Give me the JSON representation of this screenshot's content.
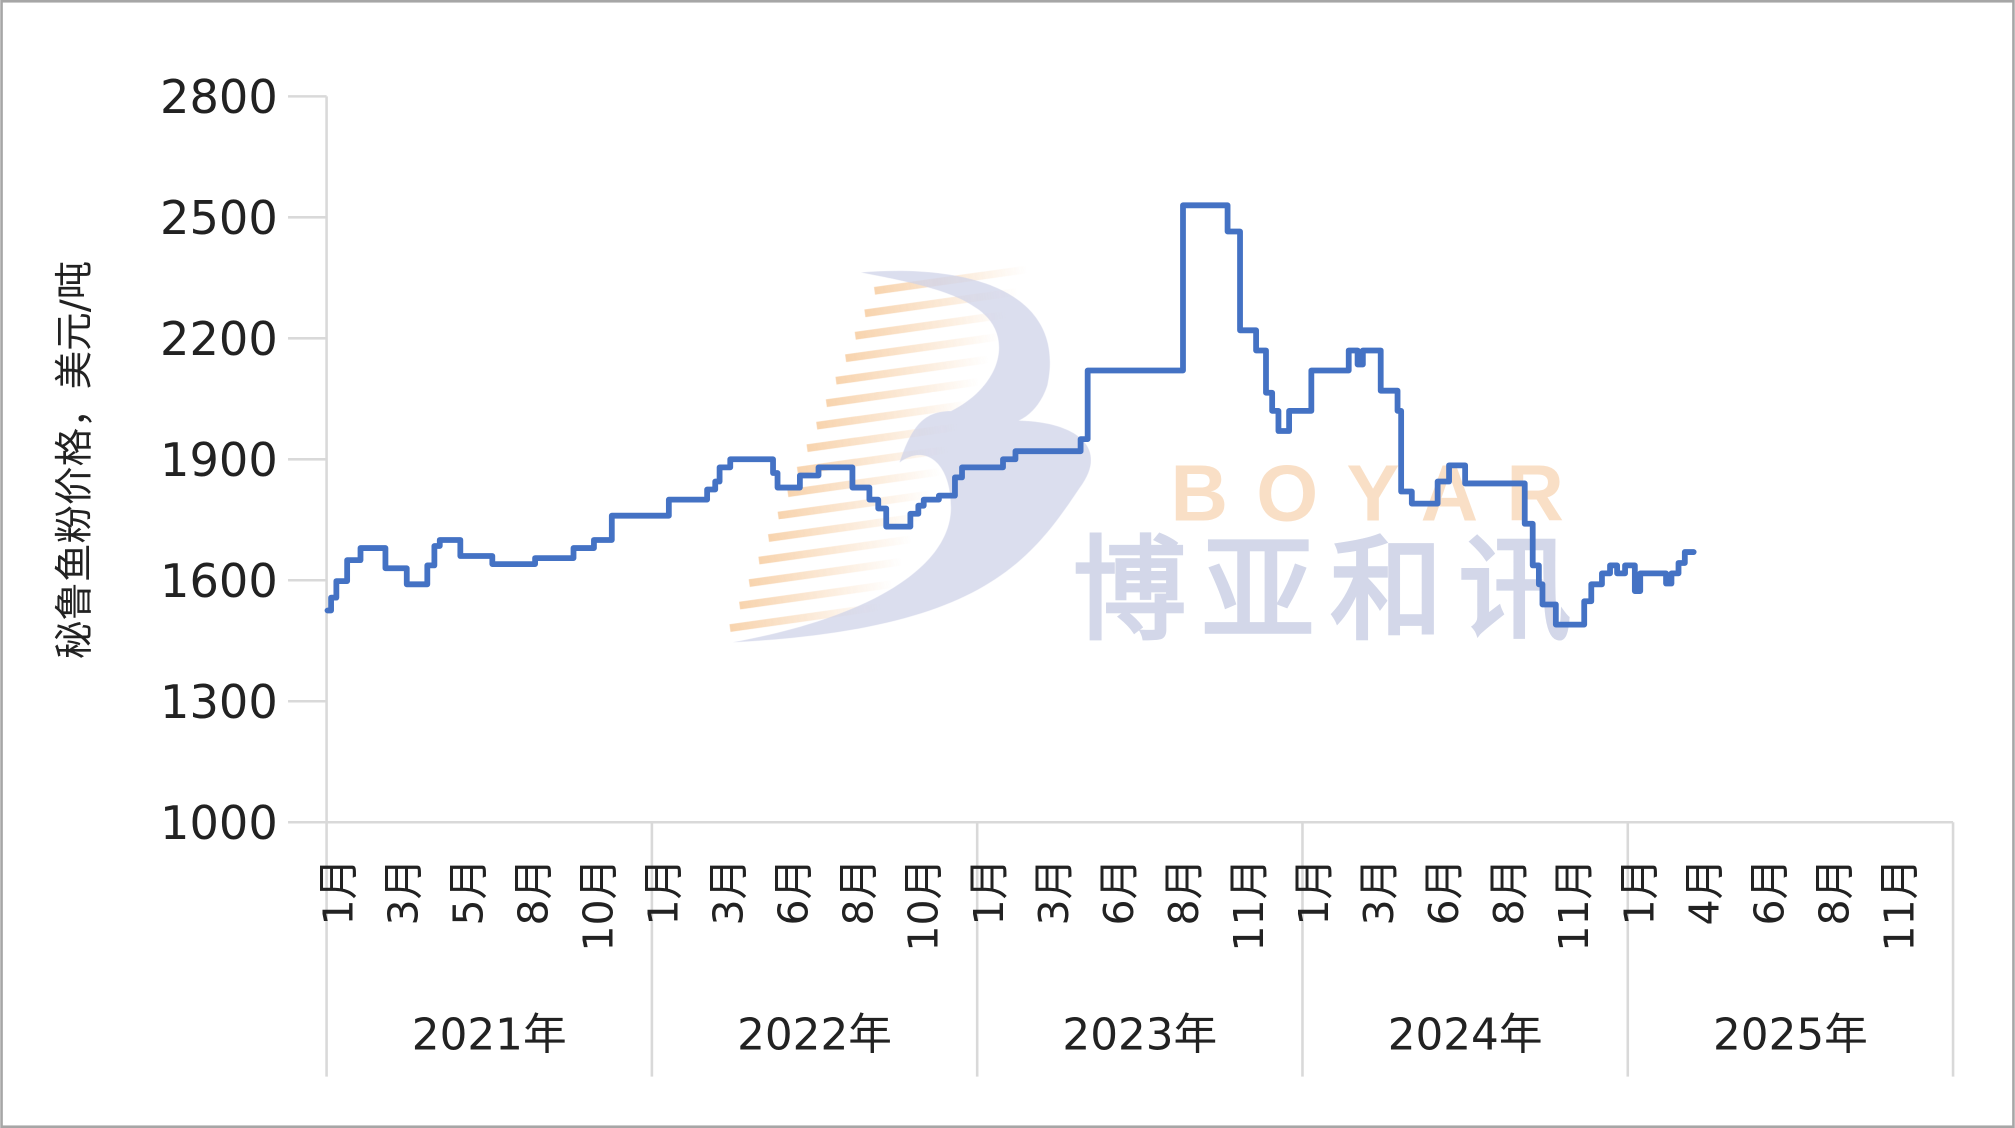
{
  "chart_data": {
    "type": "line",
    "title": "",
    "ylabel": "秘鲁鱼粉价格，美元/吨",
    "xlabel": "",
    "ylim": [
      1000,
      2800
    ],
    "yticks": [
      "1000",
      "1300",
      "1600",
      "1900",
      "2200",
      "2500",
      "2800"
    ],
    "grid": false,
    "line_color": "#4472C4",
    "years": [
      {
        "label": "2021年",
        "months": [
          "1月",
          "3月",
          "5月",
          "8月",
          "10月"
        ]
      },
      {
        "label": "2022年",
        "months": [
          "1月",
          "3月",
          "6月",
          "8月",
          "10月"
        ]
      },
      {
        "label": "2023年",
        "months": [
          "1月",
          "3月",
          "6月",
          "8月",
          "11月"
        ]
      },
      {
        "label": "2024年",
        "months": [
          "1月",
          "3月",
          "6月",
          "8月",
          "11月"
        ]
      },
      {
        "label": "2025年",
        "months": [
          "1月",
          "4月",
          "6月",
          "8月",
          "11月"
        ]
      }
    ],
    "series": [
      {
        "points": [
          [
            "2021-01-02",
            1525
          ],
          [
            "2021-01-06",
            1557
          ],
          [
            "2021-01-12",
            1598
          ],
          [
            "2021-01-24",
            1650
          ],
          [
            "2021-02-08",
            1680
          ],
          [
            "2021-03-08",
            1630
          ],
          [
            "2021-04-01",
            1590
          ],
          [
            "2021-04-24",
            1637
          ],
          [
            "2021-05-02",
            1685
          ],
          [
            "2021-05-08",
            1700
          ],
          [
            "2021-05-31",
            1660
          ],
          [
            "2021-07-06",
            1640
          ],
          [
            "2021-08-23",
            1655
          ],
          [
            "2021-10-05",
            1680
          ],
          [
            "2021-10-28",
            1700
          ],
          [
            "2021-11-17",
            1760
          ],
          [
            "2022-01-20",
            1800
          ],
          [
            "2022-03-04",
            1825
          ],
          [
            "2022-03-13",
            1845
          ],
          [
            "2022-03-18",
            1880
          ],
          [
            "2022-03-30",
            1900
          ],
          [
            "2022-05-17",
            1866
          ],
          [
            "2022-05-22",
            1830
          ],
          [
            "2022-06-16",
            1860
          ],
          [
            "2022-07-07",
            1880
          ],
          [
            "2022-08-14",
            1830
          ],
          [
            "2022-09-02",
            1800
          ],
          [
            "2022-09-12",
            1778
          ],
          [
            "2022-09-21",
            1733
          ],
          [
            "2022-10-18",
            1765
          ],
          [
            "2022-10-27",
            1785
          ],
          [
            "2022-11-02",
            1800
          ],
          [
            "2022-11-19",
            1810
          ],
          [
            "2022-12-07",
            1855
          ],
          [
            "2022-12-15",
            1880
          ],
          [
            "2023-01-30",
            1900
          ],
          [
            "2023-02-13",
            1920
          ],
          [
            "2023-04-27",
            1950
          ],
          [
            "2023-05-05",
            2120
          ],
          [
            "2023-08-20",
            2530
          ],
          [
            "2023-10-09",
            2465
          ],
          [
            "2023-10-23",
            2220
          ],
          [
            "2023-11-10",
            2170
          ],
          [
            "2023-11-21",
            2065
          ],
          [
            "2023-11-28",
            2020
          ],
          [
            "2023-12-05",
            1970
          ],
          [
            "2023-12-17",
            2020
          ],
          [
            "2024-01-11",
            2120
          ],
          [
            "2024-02-22",
            2170
          ],
          [
            "2024-03-03",
            2135
          ],
          [
            "2024-03-09",
            2170
          ],
          [
            "2024-03-29",
            2070
          ],
          [
            "2024-04-17",
            2020
          ],
          [
            "2024-04-21",
            1820
          ],
          [
            "2024-05-03",
            1790
          ],
          [
            "2024-06-01",
            1845
          ],
          [
            "2024-06-14",
            1885
          ],
          [
            "2024-07-02",
            1840
          ],
          [
            "2024-09-07",
            1740
          ],
          [
            "2024-09-16",
            1637
          ],
          [
            "2024-09-23",
            1590
          ],
          [
            "2024-09-27",
            1540
          ],
          [
            "2024-10-12",
            1490
          ],
          [
            "2024-11-13",
            1548
          ],
          [
            "2024-11-21",
            1590
          ],
          [
            "2024-12-03",
            1617
          ],
          [
            "2024-12-12",
            1637
          ],
          [
            "2024-12-20",
            1617
          ],
          [
            "2024-12-29",
            1637
          ],
          [
            "2025-01-09",
            1573
          ],
          [
            "2025-01-15",
            1617
          ],
          [
            "2025-02-13",
            1592
          ],
          [
            "2025-02-19",
            1617
          ],
          [
            "2025-02-27",
            1643
          ],
          [
            "2025-03-06",
            1670
          ],
          [
            "2025-03-16",
            1670
          ]
        ]
      }
    ]
  },
  "watermark": {
    "brand_en": "BOYAR",
    "brand_cn": "博亚和讯"
  }
}
